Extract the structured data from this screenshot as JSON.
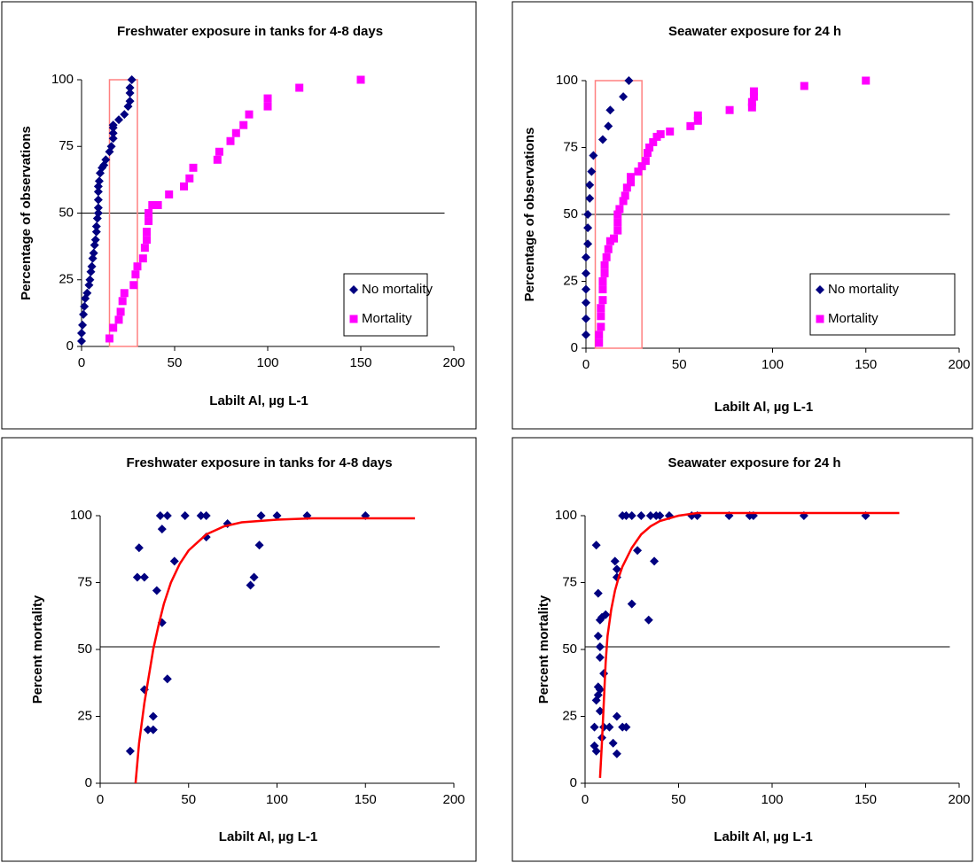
{
  "chart_data": [
    {
      "type": "scatter",
      "title": "Freshwater exposure in tanks for 4-8 days",
      "xlabel": "Labilt Al, µg L-1",
      "ylabel": "Percentage of observations",
      "xlim": [
        0,
        200
      ],
      "ylim": [
        0,
        100
      ],
      "xticks": [
        0,
        50,
        100,
        150,
        200
      ],
      "yticks": [
        0,
        25,
        50,
        75,
        100
      ],
      "legend": "lower right",
      "hline": {
        "y": 50,
        "x": [
          0,
          195
        ]
      },
      "box": {
        "x": [
          15,
          30
        ],
        "y": [
          0,
          100
        ],
        "color": "#ff8080"
      },
      "series": [
        {
          "name": "No mortality",
          "color": "#000080",
          "marker": "diamond",
          "x": [
            0,
            0,
            0.5,
            1,
            1.5,
            2,
            3,
            4,
            4.5,
            5,
            5.5,
            6,
            6.5,
            7,
            7.5,
            8,
            8,
            8.5,
            9,
            9,
            9,
            9,
            9,
            9.5,
            10,
            11,
            12,
            13,
            15,
            16,
            17,
            17,
            17,
            17,
            20,
            23,
            25,
            26,
            26,
            26,
            27
          ],
          "values": [
            2,
            5,
            8,
            12,
            15,
            18,
            20,
            23,
            25,
            28,
            30,
            33,
            35,
            38,
            40,
            43,
            45,
            48,
            50,
            52,
            55,
            58,
            60,
            62,
            65,
            67,
            68,
            70,
            73,
            75,
            78,
            80,
            82,
            83,
            85,
            87,
            90,
            92,
            95,
            97,
            100
          ]
        },
        {
          "name": "Mortality",
          "color": "#ff00ff",
          "marker": "square",
          "x": [
            15,
            17,
            20,
            21,
            22,
            23,
            28,
            29,
            30,
            33,
            34,
            35,
            35,
            36,
            36,
            38,
            41,
            47,
            55,
            58,
            60,
            73,
            74,
            80,
            83,
            87,
            90,
            100,
            100,
            117,
            150
          ],
          "values": [
            3,
            7,
            10,
            13,
            17,
            20,
            23,
            27,
            30,
            33,
            37,
            40,
            43,
            47,
            50,
            53,
            53,
            57,
            60,
            63,
            67,
            70,
            73,
            77,
            80,
            83,
            87,
            90,
            93,
            97,
            100
          ]
        }
      ]
    },
    {
      "type": "scatter",
      "title": "Seawater exposure for 24 h",
      "xlabel": "Labilt Al, µg L-1",
      "ylabel": "Percentage of observations",
      "xlim": [
        0,
        200
      ],
      "ylim": [
        0,
        100
      ],
      "xticks": [
        0,
        50,
        100,
        150,
        200
      ],
      "yticks": [
        0,
        25,
        50,
        75,
        100
      ],
      "legend": "lower right",
      "hline": {
        "y": 50,
        "x": [
          0,
          195
        ]
      },
      "box": {
        "x": [
          5,
          30
        ],
        "y": [
          0,
          100
        ],
        "color": "#ff8080"
      },
      "series": [
        {
          "name": "No mortality",
          "color": "#000080",
          "marker": "diamond",
          "x": [
            0,
            0,
            0,
            0,
            0,
            0,
            1,
            1,
            1,
            2,
            2,
            3,
            4,
            9,
            12,
            13,
            20,
            23
          ],
          "values": [
            5,
            11,
            17,
            22,
            28,
            34,
            39,
            45,
            50,
            56,
            61,
            66,
            72,
            78,
            83,
            89,
            94,
            100
          ]
        },
        {
          "name": "Mortality",
          "color": "#ff00ff",
          "marker": "square",
          "x": [
            7,
            7,
            8,
            8,
            8,
            9,
            9,
            9,
            10,
            10,
            11,
            12,
            13,
            15,
            17,
            17,
            17,
            18,
            20,
            21,
            22,
            24,
            24,
            28,
            30,
            32,
            33,
            34,
            36,
            38,
            40,
            45,
            56,
            60,
            60,
            77,
            89,
            89,
            90,
            90,
            117,
            150
          ],
          "values": [
            2,
            5,
            8,
            12,
            15,
            18,
            22,
            25,
            28,
            31,
            34,
            37,
            40,
            41,
            44,
            47,
            50,
            52,
            55,
            57,
            60,
            62,
            64,
            66,
            68,
            70,
            73,
            75,
            77,
            79,
            80,
            81,
            83,
            85,
            87,
            89,
            90,
            92,
            94,
            96,
            98,
            100
          ]
        }
      ]
    },
    {
      "type": "scatter",
      "title": "Freshwater exposure in tanks for 4-8 days",
      "xlabel": "Labilt Al, µg L-1",
      "ylabel": "Percent mortality",
      "xlim": [
        0,
        200
      ],
      "ylim": [
        0,
        100
      ],
      "xticks": [
        0,
        50,
        100,
        150,
        200
      ],
      "yticks": [
        0,
        25,
        50,
        75,
        100
      ],
      "hline": {
        "y": 51,
        "x": [
          0,
          192
        ]
      },
      "series": [
        {
          "color": "#000080",
          "marker": "diamond",
          "x": [
            17,
            21,
            22,
            25,
            25,
            27,
            30,
            30,
            32,
            34,
            35,
            35,
            38,
            38,
            42,
            48,
            57,
            60,
            60,
            72,
            85,
            87,
            90,
            91,
            100,
            117,
            150
          ],
          "values": [
            12,
            77,
            88,
            77,
            35,
            20,
            20,
            25,
            72,
            100,
            95,
            60,
            100,
            39,
            83,
            100,
            100,
            92,
            100,
            97,
            74,
            77,
            89,
            100,
            100,
            100,
            100
          ]
        },
        {
          "color": "#ff0000",
          "marker": "line",
          "x": [
            20,
            22,
            25,
            28,
            30,
            33,
            36,
            40,
            45,
            50,
            55,
            60,
            70,
            80,
            100,
            120,
            150,
            178
          ],
          "values": [
            0,
            15,
            30,
            42,
            50,
            59,
            67,
            75,
            82,
            87,
            90,
            93,
            96,
            97.5,
            98.5,
            99,
            99,
            99
          ]
        }
      ]
    },
    {
      "type": "scatter",
      "title": "Seawater exposure for 24 h",
      "xlabel": "Labilt Al, µg L-1",
      "ylabel": "Percent mortality",
      "xlim": [
        0,
        200
      ],
      "ylim": [
        0,
        100
      ],
      "xticks": [
        0,
        50,
        100,
        150,
        200
      ],
      "yticks": [
        0,
        25,
        50,
        75,
        100
      ],
      "hline": {
        "y": 51,
        "x": [
          0,
          195
        ]
      },
      "series": [
        {
          "color": "#000080",
          "marker": "diamond",
          "x": [
            5,
            5,
            6,
            6,
            6,
            7,
            7,
            7,
            7,
            8,
            8,
            8,
            8,
            8,
            9,
            9,
            10,
            10,
            11,
            13,
            15,
            16,
            17,
            17,
            17,
            17,
            20,
            20,
            22,
            22,
            25,
            25,
            28,
            30,
            34,
            35,
            37,
            38,
            40,
            45,
            57,
            60,
            77,
            88,
            90,
            117,
            150
          ],
          "values": [
            14,
            21,
            31,
            12,
            89,
            33,
            36,
            71,
            55,
            47,
            51,
            61,
            27,
            35,
            17,
            62,
            21,
            41,
            63,
            21,
            15,
            83,
            77,
            80,
            25,
            11,
            21,
            100,
            21,
            100,
            67,
            100,
            87,
            100,
            61,
            100,
            83,
            100,
            100,
            100,
            100,
            100,
            100,
            100,
            100,
            100,
            100
          ]
        },
        {
          "color": "#ff0000",
          "marker": "line",
          "x": [
            8,
            9,
            10,
            11,
            12,
            14,
            16,
            18,
            20,
            25,
            30,
            35,
            40,
            50,
            60,
            80,
            100,
            130,
            168
          ],
          "values": [
            2,
            15,
            30,
            45,
            55,
            65,
            72,
            77,
            81,
            88,
            93,
            96,
            98,
            100,
            101,
            101,
            101,
            101,
            101
          ]
        }
      ]
    }
  ]
}
